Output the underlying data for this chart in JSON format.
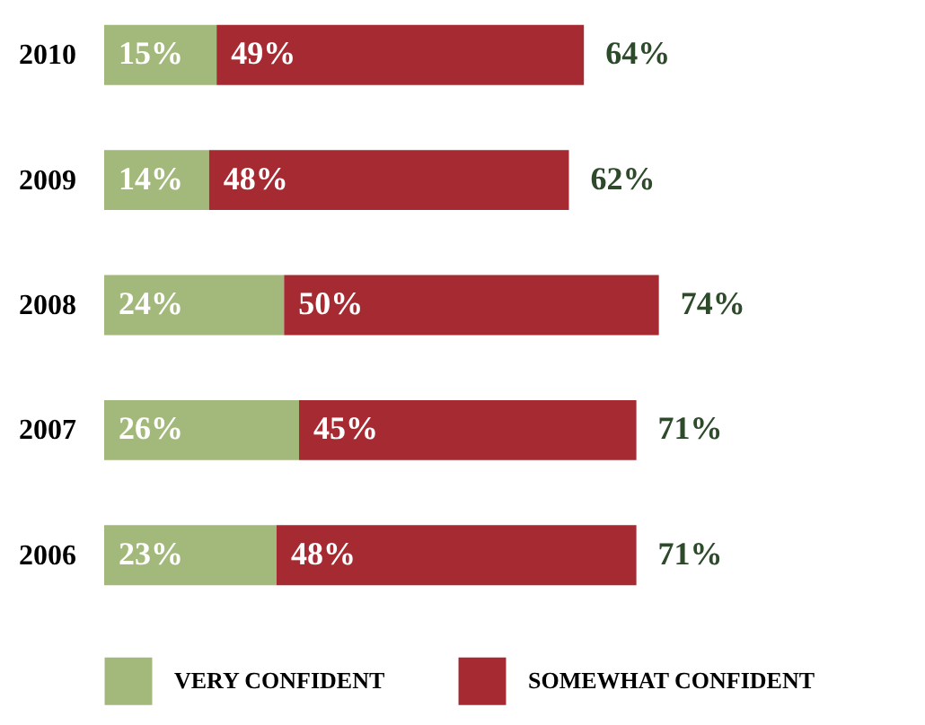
{
  "chart_data": {
    "type": "bar",
    "orientation": "horizontal",
    "stacked": true,
    "legend": "bottom",
    "categories": [
      "2010",
      "2009",
      "2008",
      "2007",
      "2006"
    ],
    "series": [
      {
        "name": "VERY CONFIDENT",
        "color": "#a3b87b",
        "values": [
          15,
          14,
          24,
          26,
          23
        ],
        "value_labels": [
          "15%",
          "14%",
          "24%",
          "26%",
          "23%"
        ]
      },
      {
        "name": "SOMEWHAT CONFIDENT",
        "color": "#a52a31",
        "values": [
          49,
          48,
          50,
          45,
          48
        ],
        "value_labels": [
          "49%",
          "48%",
          "50%",
          "45%",
          "48%"
        ]
      }
    ],
    "totals": [
      "64%",
      "62%",
      "74%",
      "71%",
      "71%"
    ]
  }
}
